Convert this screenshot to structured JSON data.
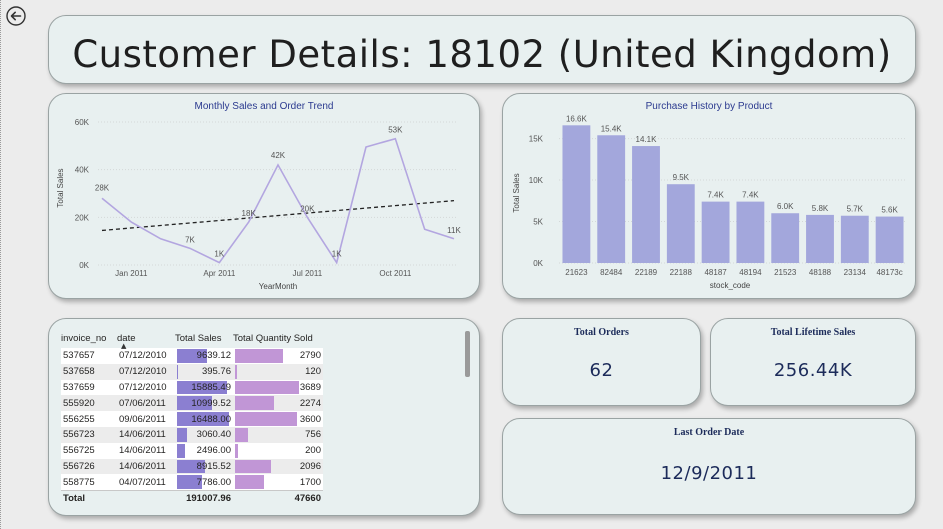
{
  "page": {
    "title": "Customer Details: 18102 (United Kingdom)"
  },
  "line_chart": {
    "title": "Monthly Sales and Order Trend",
    "xlabel": "YearMonth",
    "ylabel": "Total Sales",
    "y_ticks": [
      "0K",
      "20K",
      "40K",
      "60K"
    ],
    "x_ticks": [
      "Jan 2011",
      "Apr 2011",
      "Jul 2011",
      "Oct 2011"
    ],
    "point_labels": [
      "28K",
      "7K",
      "1K",
      "18K",
      "42K",
      "20K",
      "1K",
      "53K",
      "11K"
    ],
    "line_color": "#b3a6e0"
  },
  "bar_chart": {
    "title": "Purchase History by Product",
    "xlabel": "stock_code",
    "ylabel": "Total Sales",
    "y_ticks": [
      "0K",
      "5K",
      "10K",
      "15K"
    ],
    "bar_color": "#a3a7dc"
  },
  "chart_data": [
    {
      "type": "line",
      "title": "Monthly Sales and Order Trend",
      "xlabel": "YearMonth",
      "ylabel": "Total Sales",
      "ylim": [
        0,
        60000
      ],
      "x": [
        "Dec 2010",
        "Jan 2011",
        "Feb 2011",
        "Mar 2011",
        "Apr 2011",
        "May 2011",
        "Jun 2011",
        "Jul 2011",
        "Aug 2011",
        "Sep 2011",
        "Oct 2011",
        "Nov 2011",
        "Dec 2011"
      ],
      "series": [
        {
          "values": [
            28000,
            18000,
            11000,
            7000,
            1000,
            18000,
            42000,
            20000,
            1000,
            49500,
            53000,
            15000,
            11000
          ]
        }
      ],
      "trendline": {
        "start": 14500,
        "end": 27000,
        "style": "dashed"
      }
    },
    {
      "type": "bar",
      "title": "Purchase History by Product",
      "xlabel": "stock_code",
      "ylabel": "Total Sales",
      "ylim": [
        0,
        17000
      ],
      "categories": [
        "21623",
        "82484",
        "22189",
        "22188",
        "48187",
        "48194",
        "21523",
        "48188",
        "23134",
        "48173c"
      ],
      "values": [
        16600,
        15400,
        14100,
        9500,
        7400,
        7400,
        6000,
        5800,
        5700,
        5600
      ],
      "labels": [
        "16.6K",
        "15.4K",
        "14.1K",
        "9.5K",
        "7.4K",
        "7.4K",
        "6.0K",
        "5.8K",
        "5.7K",
        "5.6K"
      ]
    }
  ],
  "table": {
    "columns": [
      "invoice_no",
      "date",
      "Total Sales",
      "Total Quantity Sold"
    ],
    "sort_indicator": "▲",
    "rows": [
      {
        "invoice_no": "537657",
        "date": "07/12/2010",
        "sales": "9639.12",
        "sales_v": 9639.12,
        "qty": "2790",
        "qty_v": 2790
      },
      {
        "invoice_no": "537658",
        "date": "07/12/2010",
        "sales": "395.76",
        "sales_v": 395.76,
        "qty": "120",
        "qty_v": 120
      },
      {
        "invoice_no": "537659",
        "date": "07/12/2010",
        "sales": "15885.49",
        "sales_v": 15885.49,
        "qty": "3689",
        "qty_v": 3689
      },
      {
        "invoice_no": "555920",
        "date": "07/06/2011",
        "sales": "10999.52",
        "sales_v": 10999.52,
        "qty": "2274",
        "qty_v": 2274
      },
      {
        "invoice_no": "556255",
        "date": "09/06/2011",
        "sales": "16488.00",
        "sales_v": 16488.0,
        "qty": "3600",
        "qty_v": 3600
      },
      {
        "invoice_no": "556723",
        "date": "14/06/2011",
        "sales": "3060.40",
        "sales_v": 3060.4,
        "qty": "756",
        "qty_v": 756
      },
      {
        "invoice_no": "556725",
        "date": "14/06/2011",
        "sales": "2496.00",
        "sales_v": 2496.0,
        "qty": "200",
        "qty_v": 200
      },
      {
        "invoice_no": "556726",
        "date": "14/06/2011",
        "sales": "8915.52",
        "sales_v": 8915.52,
        "qty": "2096",
        "qty_v": 2096
      },
      {
        "invoice_no": "558775",
        "date": "04/07/2011",
        "sales": "7786.00",
        "sales_v": 7786.0,
        "qty": "1700",
        "qty_v": 1700
      }
    ],
    "total": {
      "label": "Total",
      "sales": "191007.96",
      "qty": "47660"
    },
    "sales_bar_color": "#8b7fd1",
    "qty_bar_color": "#c196d6"
  },
  "kpis": {
    "total_orders": {
      "label": "Total Orders",
      "value": "62"
    },
    "lifetime_sales": {
      "label": "Total Lifetime Sales",
      "value": "256.44K"
    },
    "last_order": {
      "label": "Last Order Date",
      "value": "12/9/2011"
    }
  },
  "icons": {
    "back": "back-arrow-icon"
  }
}
